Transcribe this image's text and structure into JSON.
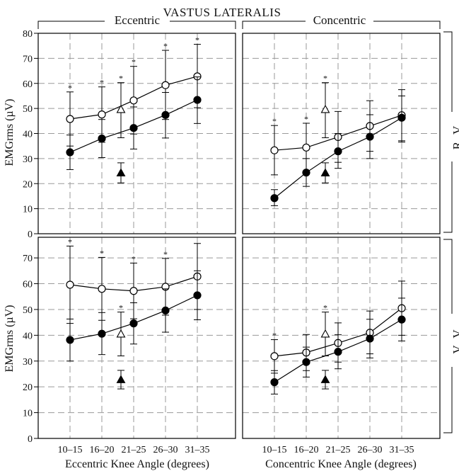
{
  "figure": {
    "title": "VASTUS LATERALIS",
    "ecc_header": "Eccentric",
    "con_header": "Concentric",
    "row_labels": [
      "R V",
      "V V"
    ],
    "ylabel": "EMGrms (µV)",
    "xlabel_ecc": "Eccentric Knee Angle (degrees)",
    "xlabel_con": "Concentric Knee Angle (degrees)",
    "categories": [
      "10–15",
      "16–20",
      "21–25",
      "26–30",
      "31–35"
    ],
    "top_yticks": [
      "0",
      "10",
      "20",
      "30",
      "40",
      "50",
      "60",
      "70",
      "80"
    ],
    "bottom_yticks": [
      "0",
      "10",
      "20",
      "30",
      "40",
      "50",
      "60",
      "70"
    ]
  },
  "chart_data": [
    {
      "type": "line",
      "panel": "RV-eccentric",
      "row": "R V",
      "mode": "Eccentric",
      "ylim": [
        0,
        80
      ],
      "grid": true,
      "categories": [
        "10–15",
        "16–20",
        "21–25",
        "26–30",
        "31–35"
      ],
      "series": [
        {
          "marker": "open-circle",
          "values": [
            45.8,
            47.6,
            53.2,
            59.3,
            62.8
          ],
          "err_low": [
            35,
            36.5,
            39.8,
            45.6,
            50.3
          ],
          "err_high": [
            56.6,
            58.6,
            66.8,
            73.2,
            75.6
          ],
          "sig": [
            true,
            true,
            true,
            true,
            true
          ]
        },
        {
          "marker": "filled-circle",
          "values": [
            32.5,
            38,
            42.2,
            47.4,
            53.4
          ],
          "err_low": [
            25.6,
            30.4,
            33.8,
            38.2,
            44
          ],
          "err_high": [
            39.4,
            45.6,
            50.6,
            56.4,
            62.6
          ]
        }
      ],
      "mean_points": [
        {
          "marker": "open-triangle",
          "x": 1.6,
          "value": 49.6,
          "err_low": 38.3,
          "err_high": 60.3,
          "sig": true
        },
        {
          "marker": "filled-triangle",
          "x": 1.6,
          "value": 24.3,
          "err_low": 20.3,
          "err_high": 28.3
        }
      ]
    },
    {
      "type": "line",
      "panel": "RV-concentric",
      "row": "R V",
      "mode": "Concentric",
      "ylim": [
        0,
        80
      ],
      "grid": true,
      "categories": [
        "10–15",
        "16–20",
        "21–25",
        "26–30",
        "31–35"
      ],
      "series": [
        {
          "marker": "open-circle",
          "values": [
            33.3,
            34.4,
            38.6,
            43,
            47.3
          ],
          "err_low": [
            23.5,
            24.9,
            28.5,
            32.9,
            37.1
          ],
          "err_high": [
            43.2,
            44.1,
            48.8,
            53.1,
            57.5
          ],
          "sig": [
            true,
            true,
            false,
            false,
            false
          ]
        },
        {
          "marker": "filled-circle",
          "values": [
            14.2,
            24.4,
            32.9,
            38.7,
            46.3
          ],
          "err_low": [
            11.2,
            18.9,
            26.1,
            30,
            36.6
          ],
          "err_high": [
            17.6,
            30,
            40,
            47.5,
            55
          ]
        }
      ],
      "mean_points": [
        {
          "marker": "open-triangle",
          "x": 1.6,
          "value": 49.6,
          "err_low": 38.3,
          "err_high": 60.3,
          "sig": true
        },
        {
          "marker": "filled-triangle",
          "x": 1.6,
          "value": 24.3,
          "err_low": 20.3,
          "err_high": 28.3
        }
      ]
    },
    {
      "type": "line",
      "panel": "VV-eccentric",
      "row": "V V",
      "mode": "Eccentric",
      "ylim": [
        0,
        78
      ],
      "grid": true,
      "categories": [
        "10–15",
        "16–20",
        "21–25",
        "26–30",
        "31–35"
      ],
      "series": [
        {
          "marker": "open-circle",
          "values": [
            59.6,
            58,
            57.2,
            58.8,
            62.8
          ],
          "err_low": [
            44.6,
            45.8,
            46.4,
            47.8,
            50
          ],
          "err_high": [
            74.6,
            70.2,
            68,
            69.8,
            75.6
          ],
          "sig": [
            true,
            true,
            true,
            true,
            false
          ]
        },
        {
          "marker": "filled-circle",
          "values": [
            38.2,
            40.6,
            44.6,
            49.6,
            55.5
          ],
          "err_low": [
            30,
            32.5,
            36.6,
            41.2,
            46
          ],
          "err_high": [
            46.3,
            48.8,
            52.6,
            58,
            65
          ]
        }
      ],
      "mean_points": [
        {
          "marker": "open-triangle",
          "x": 1.6,
          "value": 40.5,
          "err_low": 32,
          "err_high": 49,
          "sig": true
        },
        {
          "marker": "filled-triangle",
          "x": 1.6,
          "value": 22.8,
          "err_low": 19.2,
          "err_high": 26.4
        }
      ]
    },
    {
      "type": "line",
      "panel": "VV-concentric",
      "row": "V V",
      "mode": "Concentric",
      "ylim": [
        0,
        78
      ],
      "grid": true,
      "categories": [
        "10–15",
        "16–20",
        "21–25",
        "26–30",
        "31–35"
      ],
      "series": [
        {
          "marker": "open-circle",
          "values": [
            31.9,
            33.3,
            37,
            41,
            50.5
          ],
          "err_low": [
            25.3,
            26.3,
            29.6,
            32.8,
            40
          ],
          "err_high": [
            38.3,
            40.3,
            44.8,
            49.4,
            61
          ],
          "sig": [
            true,
            false,
            false,
            false,
            false
          ]
        },
        {
          "marker": "filled-circle",
          "values": [
            21.8,
            29.6,
            33.6,
            38.7,
            46.1
          ],
          "err_low": [
            17.2,
            23.8,
            27,
            31.2,
            37.8
          ],
          "err_high": [
            26.3,
            35.4,
            40.2,
            46.2,
            54.4
          ]
        }
      ],
      "mean_points": [
        {
          "marker": "open-triangle",
          "x": 1.6,
          "value": 40.5,
          "err_low": 32,
          "err_high": 49,
          "sig": true
        },
        {
          "marker": "filled-triangle",
          "x": 1.6,
          "value": 22.8,
          "err_low": 19.2,
          "err_high": 26.4
        }
      ]
    }
  ]
}
